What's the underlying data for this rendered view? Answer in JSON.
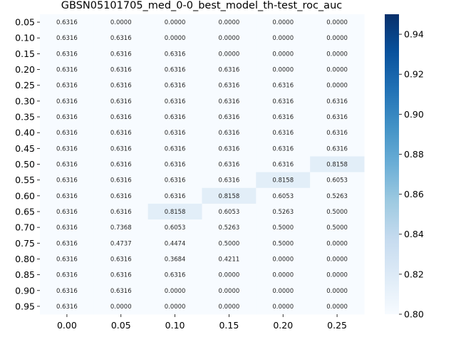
{
  "chart_data": {
    "type": "heatmap",
    "title": "GBSN05101705_med_0-0_best_model_th-test_roc_auc",
    "xlabel": "",
    "ylabel": "",
    "x_categories": [
      "0.00",
      "0.05",
      "0.10",
      "0.15",
      "0.20",
      "0.25"
    ],
    "y_categories": [
      "0.05",
      "0.10",
      "0.15",
      "0.20",
      "0.25",
      "0.30",
      "0.35",
      "0.40",
      "0.45",
      "0.50",
      "0.55",
      "0.60",
      "0.65",
      "0.70",
      "0.75",
      "0.80",
      "0.85",
      "0.90",
      "0.95"
    ],
    "values": [
      [
        "0.6316",
        "0.0000",
        "0.0000",
        "0.0000",
        "0.0000",
        "0.0000"
      ],
      [
        "0.6316",
        "0.6316",
        "0.0000",
        "0.0000",
        "0.0000",
        "0.0000"
      ],
      [
        "0.6316",
        "0.6316",
        "0.6316",
        "0.0000",
        "0.0000",
        "0.0000"
      ],
      [
        "0.6316",
        "0.6316",
        "0.6316",
        "0.6316",
        "0.0000",
        "0.0000"
      ],
      [
        "0.6316",
        "0.6316",
        "0.6316",
        "0.6316",
        "0.6316",
        "0.0000"
      ],
      [
        "0.6316",
        "0.6316",
        "0.6316",
        "0.6316",
        "0.6316",
        "0.6316"
      ],
      [
        "0.6316",
        "0.6316",
        "0.6316",
        "0.6316",
        "0.6316",
        "0.6316"
      ],
      [
        "0.6316",
        "0.6316",
        "0.6316",
        "0.6316",
        "0.6316",
        "0.6316"
      ],
      [
        "0.6316",
        "0.6316",
        "0.6316",
        "0.6316",
        "0.6316",
        "0.6316"
      ],
      [
        "0.6316",
        "0.6316",
        "0.6316",
        "0.6316",
        "0.6316",
        "0.8158"
      ],
      [
        "0.6316",
        "0.6316",
        "0.6316",
        "0.6316",
        "0.8158",
        "0.6053"
      ],
      [
        "0.6316",
        "0.6316",
        "0.6316",
        "0.8158",
        "0.6053",
        "0.5263"
      ],
      [
        "0.6316",
        "0.6316",
        "0.8158",
        "0.6053",
        "0.5263",
        "0.5000"
      ],
      [
        "0.6316",
        "0.7368",
        "0.6053",
        "0.5263",
        "0.5000",
        "0.5000"
      ],
      [
        "0.6316",
        "0.4737",
        "0.4474",
        "0.5000",
        "0.5000",
        "0.0000"
      ],
      [
        "0.6316",
        "0.6316",
        "0.3684",
        "0.4211",
        "0.0000",
        "0.0000"
      ],
      [
        "0.6316",
        "0.6316",
        "0.6316",
        "0.0000",
        "0.0000",
        "0.0000"
      ],
      [
        "0.6316",
        "0.6316",
        "0.0000",
        "0.0000",
        "0.0000",
        "0.0000"
      ],
      [
        "0.6316",
        "0.0000",
        "0.0000",
        "0.0000",
        "0.0000",
        "0.0000"
      ]
    ],
    "colorbar": {
      "min": 0.8,
      "max": 0.95,
      "ticks": [
        "0.80",
        "0.82",
        "0.84",
        "0.86",
        "0.88",
        "0.90",
        "0.92",
        "0.94"
      ],
      "colormap": "Blues",
      "color_low": "#f7fbff",
      "color_high": "#08306b"
    },
    "grid": false,
    "legend": "colorbar-right"
  }
}
